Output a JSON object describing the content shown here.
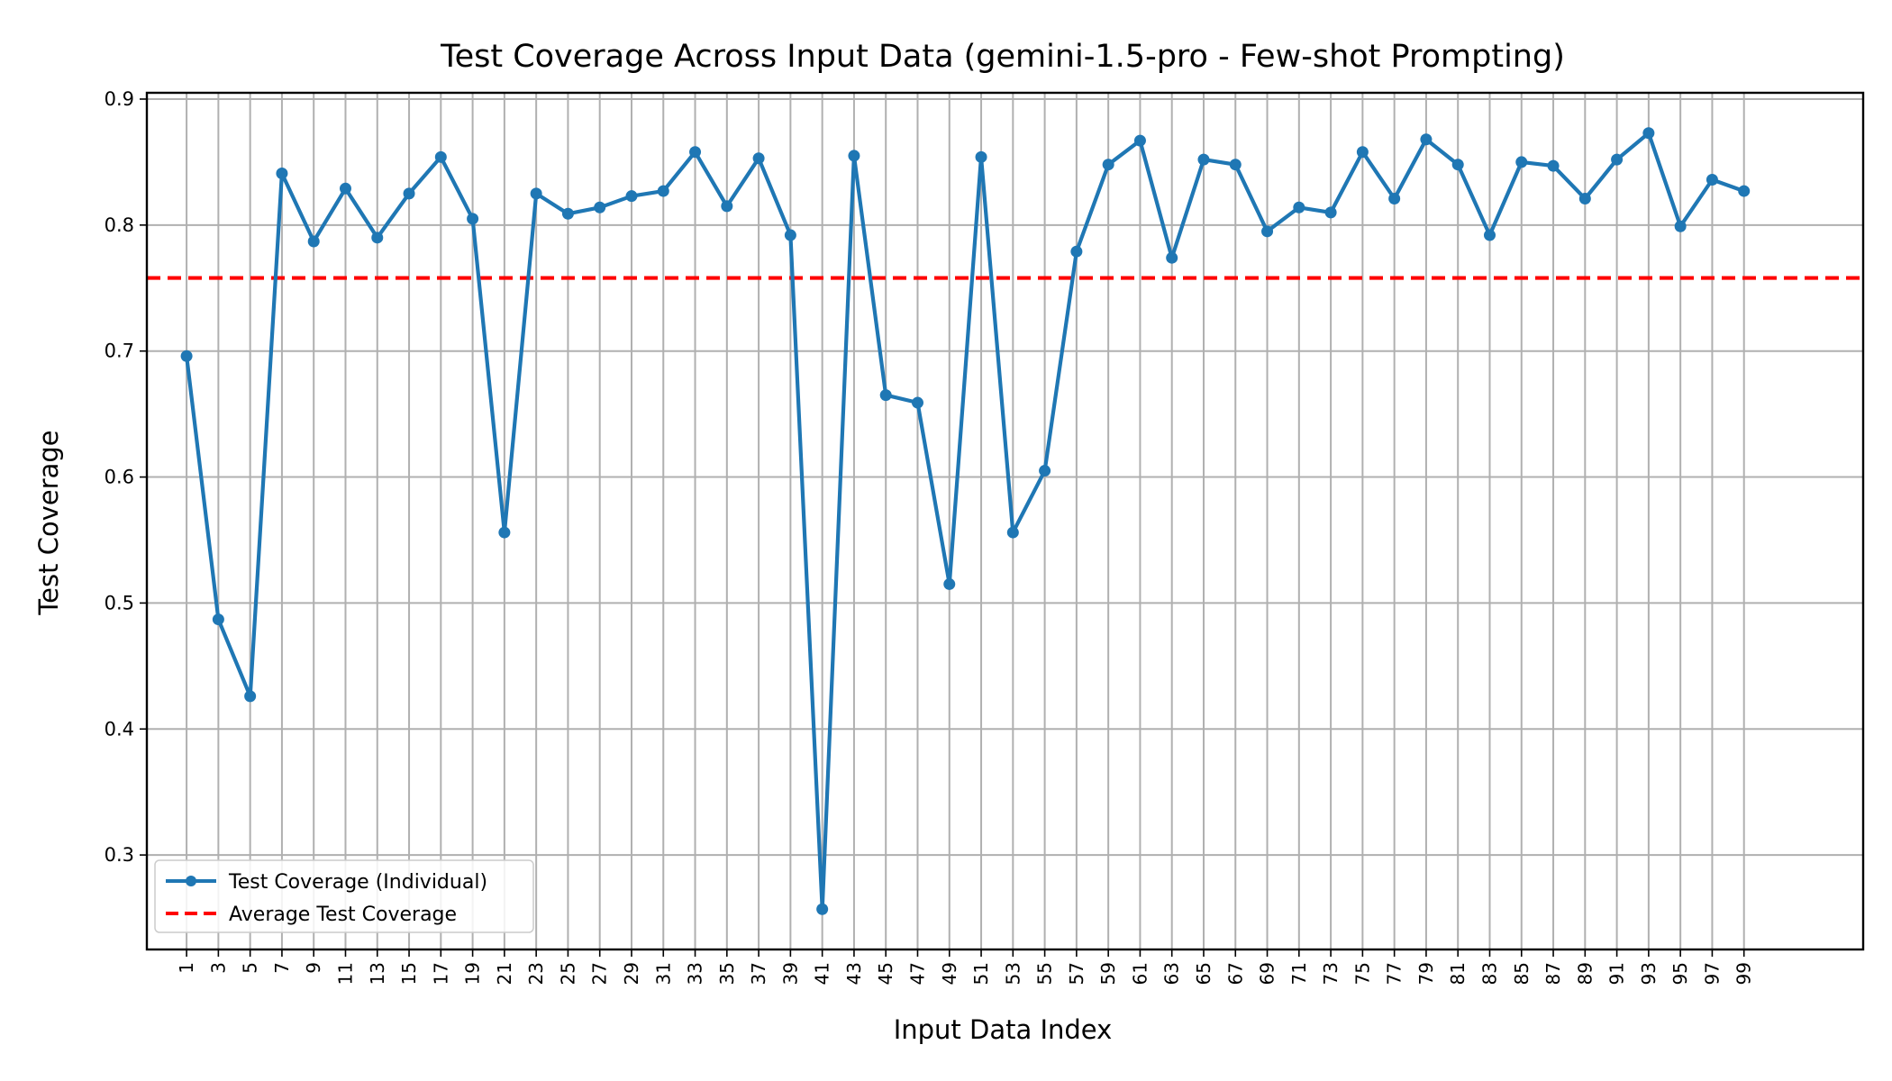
{
  "chart_data": {
    "type": "line",
    "title": "Test Coverage Across Input Data (gemini-1.5-pro - Few-shot Prompting)",
    "xlabel": "Input Data Index",
    "ylabel": "Test Coverage",
    "xlim": [
      -1.5,
      106.5
    ],
    "ylim": [
      0.225,
      0.905
    ],
    "x_ticks": [
      1,
      3,
      5,
      7,
      9,
      11,
      13,
      15,
      17,
      19,
      21,
      23,
      25,
      27,
      29,
      31,
      33,
      35,
      37,
      39,
      41,
      43,
      45,
      47,
      49,
      51,
      53,
      55,
      57,
      59,
      61,
      63,
      65,
      67,
      69,
      71,
      73,
      75,
      77,
      79,
      81,
      83,
      85,
      87,
      89,
      91,
      93,
      95,
      97,
      99
    ],
    "y_ticks": [
      0.3,
      0.4,
      0.5,
      0.6,
      0.7,
      0.8,
      0.9
    ],
    "y_tick_labels": [
      "0.3",
      "0.4",
      "0.5",
      "0.6",
      "0.7",
      "0.8",
      "0.9"
    ],
    "grid": true,
    "legend_position": "lower-left",
    "series": [
      {
        "name": "Test Coverage (Individual)",
        "style": "line-marker",
        "color": "#1f77b4",
        "x": [
          1,
          3,
          5,
          7,
          9,
          11,
          13,
          15,
          17,
          19,
          21,
          23,
          25,
          27,
          29,
          31,
          33,
          35,
          37,
          39,
          41,
          43,
          45,
          47,
          49,
          51,
          53,
          55,
          57,
          59,
          61,
          63,
          65,
          67,
          69,
          71,
          73,
          75,
          77,
          79,
          81,
          83,
          85,
          87,
          89,
          91,
          93,
          95,
          97,
          99
        ],
        "y": [
          0.696,
          0.487,
          0.426,
          0.841,
          0.787,
          0.829,
          0.79,
          0.825,
          0.854,
          0.805,
          0.556,
          0.825,
          0.809,
          0.814,
          0.823,
          0.827,
          0.858,
          0.815,
          0.853,
          0.792,
          0.257,
          0.855,
          0.665,
          0.659,
          0.515,
          0.854,
          0.556,
          0.605,
          0.779,
          0.848,
          0.867,
          0.774,
          0.852,
          0.848,
          0.795,
          0.814,
          0.81,
          0.858,
          0.821,
          0.868,
          0.848,
          0.792,
          0.85,
          0.847,
          0.821,
          0.852,
          0.873,
          0.799,
          0.836,
          0.827
        ]
      },
      {
        "name": "Average Test Coverage",
        "style": "dashed-hline",
        "color": "#ff0000",
        "y": 0.758
      }
    ]
  }
}
